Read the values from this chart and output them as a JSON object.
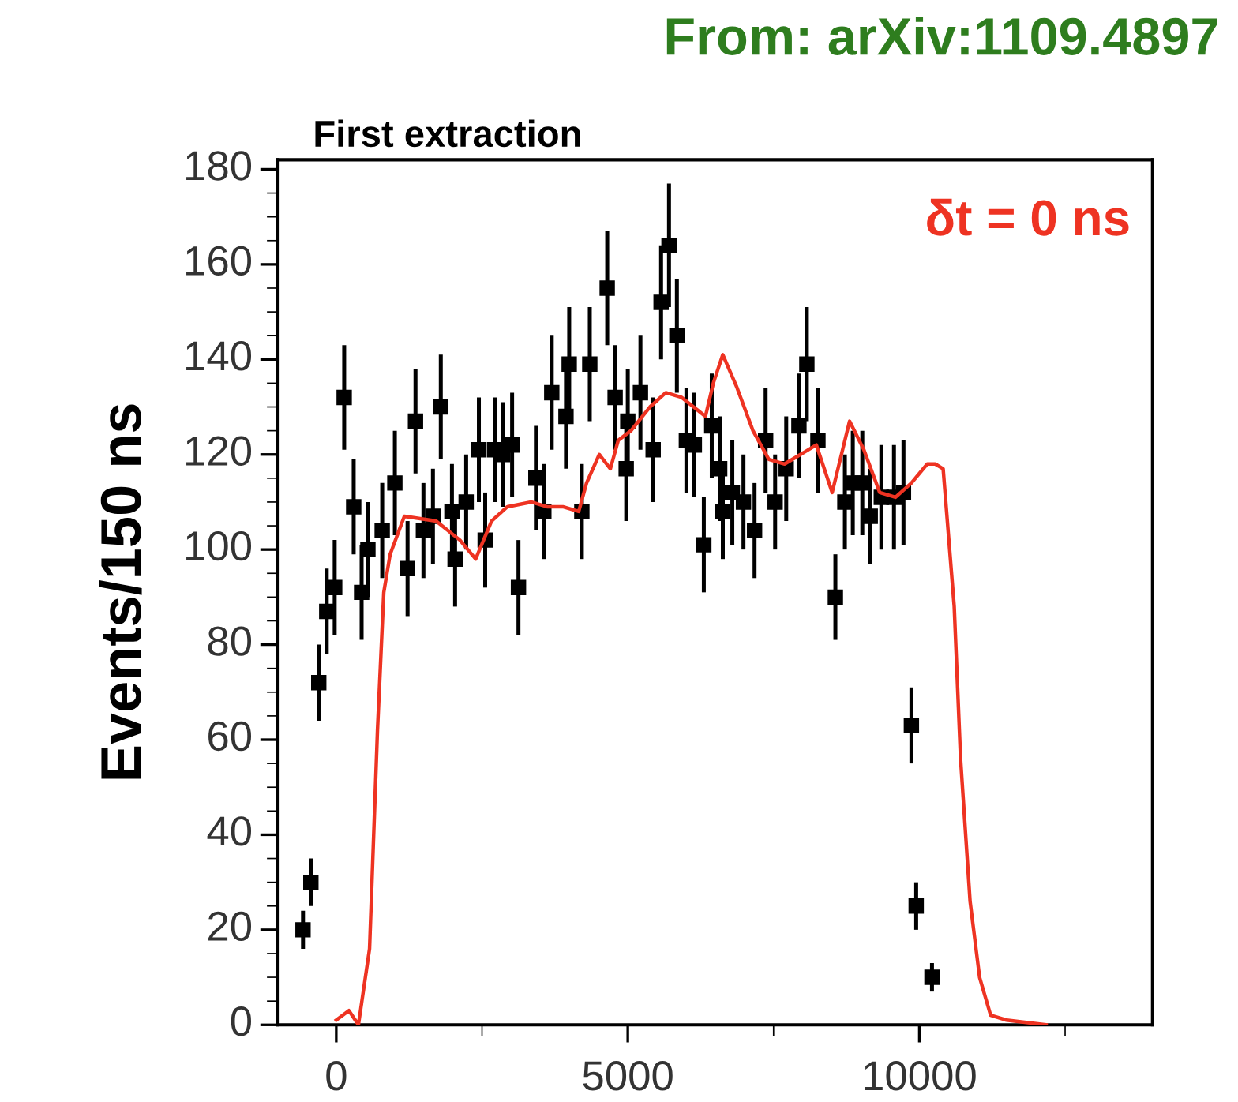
{
  "chart_data": {
    "type": "scatter",
    "title": "First extraction",
    "ylabel": "Events/150 ns",
    "annotations": [
      "δt = 0 ns",
      "From: arXiv:1109.4897"
    ],
    "xlim": [
      -1000,
      14000
    ],
    "ylim": [
      0,
      182
    ],
    "xticks": [
      0,
      {
        "value": 2500,
        "label": null
      },
      5000,
      {
        "value": 7500,
        "label": null
      },
      10000,
      {
        "value": 12500,
        "label": null
      }
    ],
    "yticks": [
      0,
      20,
      40,
      60,
      80,
      100,
      120,
      140,
      160,
      180
    ],
    "grid": false,
    "legend": false,
    "series": [
      {
        "color": "#000000",
        "marker": "square",
        "x": [
          -570,
          -435,
          -300,
          -163,
          -27,
          136,
          299,
          435,
          543,
          788,
          1005,
          1223,
          1359,
          1495,
          1658,
          1793,
          1984,
          2038,
          2228,
          2446,
          2554,
          2717,
          2853,
          3016,
          3125,
          3424,
          3560,
          3696,
          3940,
          3995,
          4212,
          4348,
          4647,
          4783,
          4973,
          5000,
          5217,
          5435,
          5571,
          5707,
          5842,
          6005,
          6141,
          6304,
          6440,
          6576,
          6630,
          6793,
          6984,
          7174,
          7364,
          7527,
          7717,
          7935,
          8071,
          8261,
          8560,
          8723,
          8859,
          9022,
          9158,
          9348,
          9565,
          9728,
          9864,
          9946,
          10217
        ],
        "values": [
          20,
          30,
          72,
          87,
          92,
          132,
          109,
          91,
          100,
          104,
          114,
          96,
          127,
          104,
          107,
          130,
          108,
          98,
          110,
          121,
          102,
          121,
          120,
          122,
          92,
          115,
          108,
          133,
          128,
          139,
          108,
          139,
          155,
          132,
          117,
          127,
          133,
          121,
          152,
          164,
          145,
          123,
          122,
          101,
          126,
          117,
          108,
          112,
          110,
          104,
          123,
          110,
          117,
          126,
          139,
          123,
          90,
          110,
          114,
          114,
          107,
          111,
          111,
          112,
          63,
          25,
          10
        ],
        "errors": [
          4,
          5,
          8,
          9,
          10,
          11,
          10,
          10,
          10,
          10,
          11,
          10,
          11,
          10,
          10,
          11,
          10,
          10,
          10,
          11,
          10,
          11,
          11,
          11,
          10,
          11,
          10,
          12,
          11,
          12,
          10,
          12,
          12,
          11,
          11,
          11,
          12,
          11,
          12,
          13,
          12,
          11,
          11,
          10,
          11,
          11,
          10,
          11,
          10,
          10,
          11,
          10,
          11,
          11,
          12,
          11,
          9,
          10,
          11,
          11,
          10,
          11,
          11,
          11,
          8,
          5,
          3
        ]
      },
      {
        "type": "line",
        "color": "#ee3322",
        "x": [
          0,
          217,
          380,
          571,
          707,
          815,
          924,
          1168,
          1712,
          2120,
          2391,
          2663,
          2935,
          3342,
          3614,
          3886,
          4158,
          4293,
          4511,
          4701,
          4837,
          5054,
          5380,
          5652,
          5924,
          6332,
          6467,
          6630,
          6875,
          7147,
          7418,
          7690,
          7962,
          8234,
          8505,
          8804,
          9049,
          9321,
          9592,
          9864,
          10136,
          10272,
          10408,
          10598,
          10707,
          10870,
          11033,
          11223,
          11495,
          12174
        ],
        "values": [
          1,
          3,
          0,
          16,
          62,
          91,
          99,
          107,
          106,
          102,
          98,
          106,
          109,
          110,
          109,
          109,
          108,
          114,
          120,
          117,
          123,
          125,
          130,
          133,
          132,
          128,
          135,
          141,
          134,
          125,
          119,
          118,
          120,
          122,
          112,
          127,
          121,
          112,
          111,
          114,
          118,
          118,
          117,
          88,
          56,
          26,
          10,
          2,
          1,
          0
        ]
      }
    ]
  }
}
